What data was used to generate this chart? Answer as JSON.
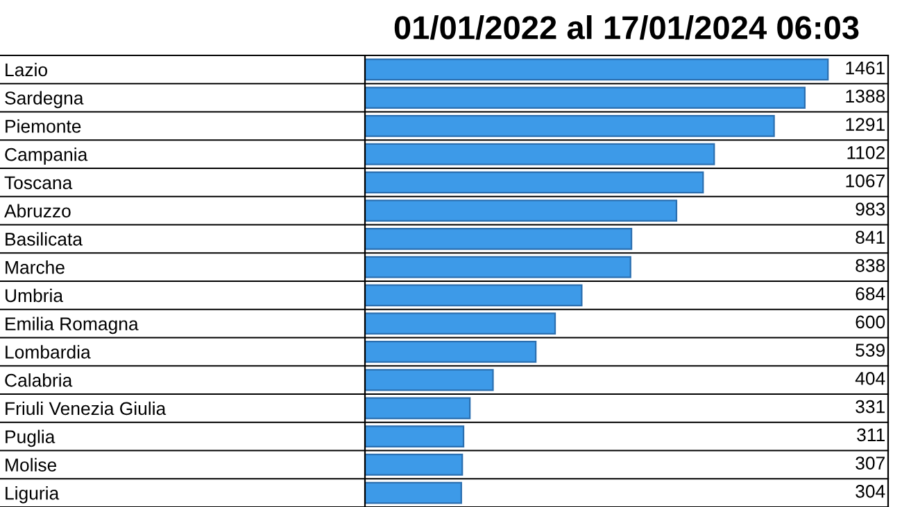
{
  "chart_data": {
    "type": "bar",
    "orientation": "horizontal",
    "title": "01/01/2022 al 17/01/2024 06:03",
    "categories": [
      "Lazio",
      "Sardegna",
      "Piemonte",
      "Campania",
      "Toscana",
      "Abruzzo",
      "Basilicata",
      "Marche",
      "Umbria",
      "Emilia Romagna",
      "Lombardia",
      "Calabria",
      "Friuli Venezia Giulia",
      "Puglia",
      "Molise",
      "Liguria"
    ],
    "values": [
      1461,
      1388,
      1291,
      1102,
      1067,
      983,
      841,
      838,
      684,
      600,
      539,
      404,
      331,
      311,
      307,
      304
    ],
    "color": "#3d9ae8",
    "data_labels": true
  }
}
